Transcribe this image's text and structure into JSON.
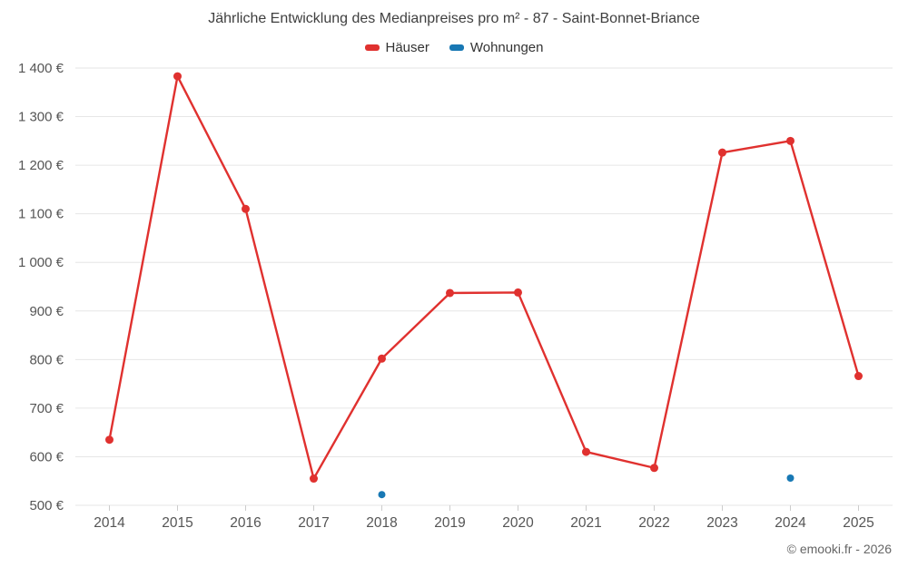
{
  "title": "Jährliche Entwicklung des Medianpreises pro m² - 87 - Saint-Bonnet-Briance",
  "footer": "© emooki.fr - 2026",
  "legend": {
    "items": [
      {
        "label": "Häuser",
        "color": "#e0312f"
      },
      {
        "label": "Wohnungen",
        "color": "#1878b4"
      }
    ]
  },
  "colors": {
    "grid": "#e6e6e6",
    "tick": "#cccccc",
    "axis_text": "#555555"
  },
  "chart_data": {
    "type": "line",
    "title": "Jährliche Entwicklung des Medianpreises pro m² - 87 - Saint-Bonnet-Briance",
    "categories": [
      "2014",
      "2015",
      "2016",
      "2017",
      "2018",
      "2019",
      "2020",
      "2021",
      "2022",
      "2023",
      "2024",
      "2025"
    ],
    "series": [
      {
        "name": "Häuser",
        "color": "#e0312f",
        "style": "line-with-points",
        "values": [
          635,
          1383,
          1110,
          555,
          802,
          937,
          938,
          610,
          577,
          1226,
          1250,
          766
        ]
      },
      {
        "name": "Wohnungen",
        "color": "#1878b4",
        "style": "points-only",
        "values": [
          null,
          null,
          null,
          null,
          522,
          null,
          null,
          null,
          null,
          null,
          556,
          null
        ]
      }
    ],
    "xlabel": "",
    "ylabel": "",
    "ylim": [
      500,
      1400
    ],
    "ytick_step": 100,
    "ytick_suffix": " €",
    "grid": "horizontal",
    "legend_position": "top"
  }
}
